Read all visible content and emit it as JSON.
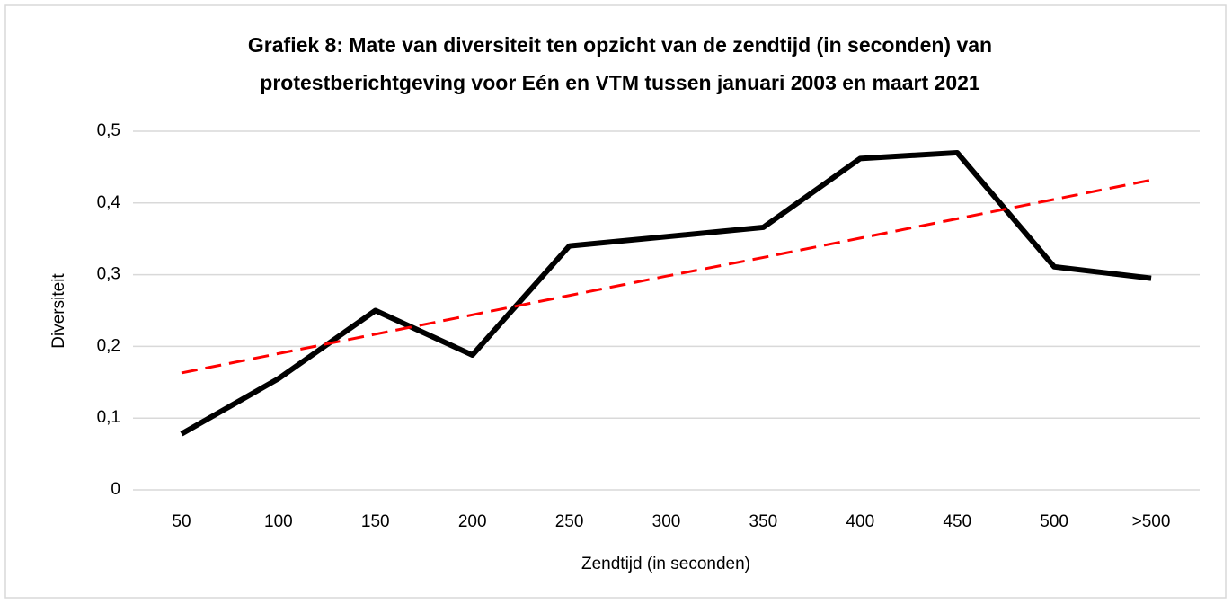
{
  "chart_data": {
    "type": "line",
    "title": [
      "Grafiek 8: Mate van diversiteit ten opzicht van de zendtijd (in seconden) van",
      "protestberichtgeving voor Eén en VTM tussen januari 2003 en maart 2021"
    ],
    "x_label": "Zendtijd (in seconden)",
    "y_label": "Diversiteit",
    "categories": [
      "50",
      "100",
      "150",
      "200",
      "250",
      "300",
      "350",
      "400",
      "450",
      "500",
      ">500"
    ],
    "series": [
      {
        "color": "#000000",
        "dashed": false,
        "values": [
          0.078,
          0.155,
          0.25,
          0.188,
          0.34,
          0.353,
          0.366,
          0.462,
          0.47,
          0.311,
          0.295
        ]
      },
      {
        "color": "#ff0000",
        "dashed": true,
        "values": [
          0.163,
          0.19,
          0.217,
          0.244,
          0.271,
          0.298,
          0.324,
          0.351,
          0.378,
          0.405,
          0.432
        ]
      }
    ],
    "ylim": [
      0,
      0.5
    ],
    "yticks": [
      0,
      {
        "value": 0.1,
        "label": "0,1"
      },
      {
        "value": 0.2,
        "label": "0,2"
      },
      {
        "value": 0.3,
        "label": "0,3"
      },
      {
        "value": 0.4,
        "label": "0,4"
      },
      {
        "value": 0.5,
        "label": "0,5"
      }
    ],
    "grid": true
  }
}
